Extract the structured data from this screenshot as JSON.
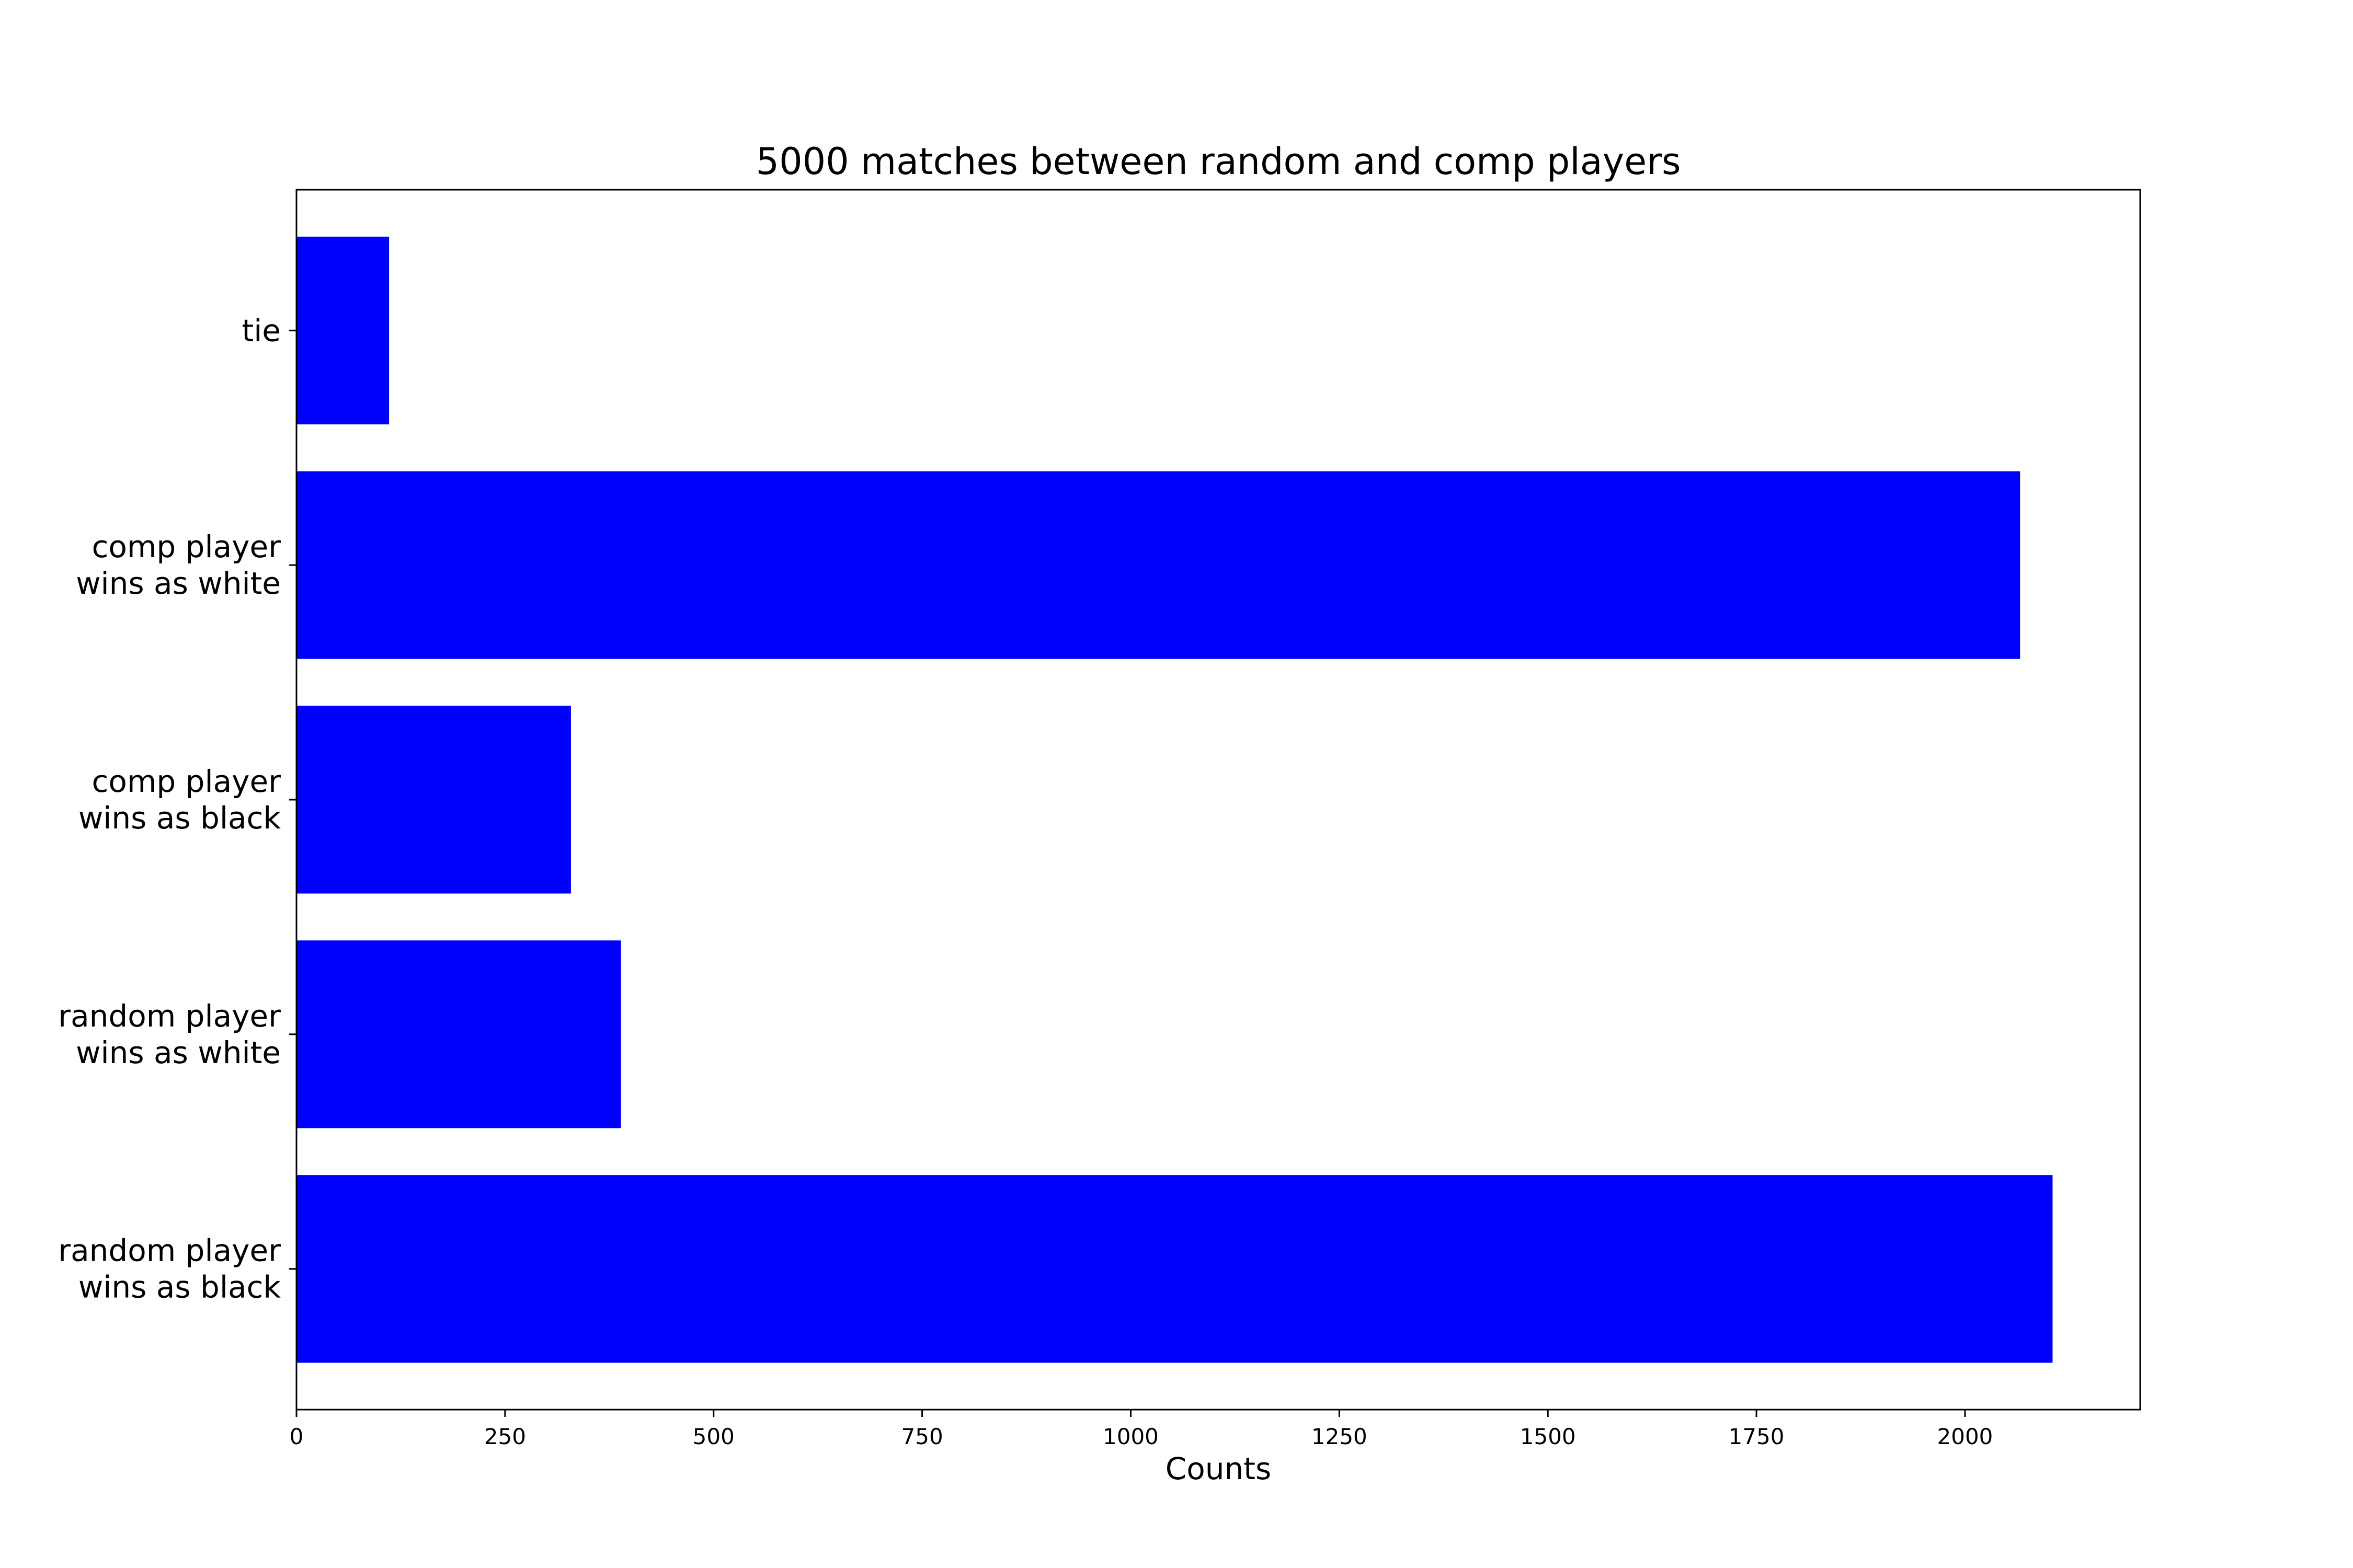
{
  "chart_data": {
    "type": "bar",
    "orientation": "horizontal",
    "title": "5000 matches between random and comp players",
    "xlabel": "Counts",
    "ylabel": "",
    "categories": [
      [
        "tie"
      ],
      [
        "comp player",
        "wins as white"
      ],
      [
        "comp player",
        "wins as black"
      ],
      [
        "random player",
        "wins as white"
      ],
      [
        "random player",
        "wins as black"
      ]
    ],
    "values": [
      111,
      2066,
      329,
      389,
      2105
    ],
    "xlim": [
      0,
      2210
    ],
    "xticks": [
      "0",
      "250",
      "500",
      "750",
      "1000",
      "1250",
      "1500",
      "1750",
      "2000"
    ],
    "grid": false,
    "bar_color": "#0000ff"
  }
}
